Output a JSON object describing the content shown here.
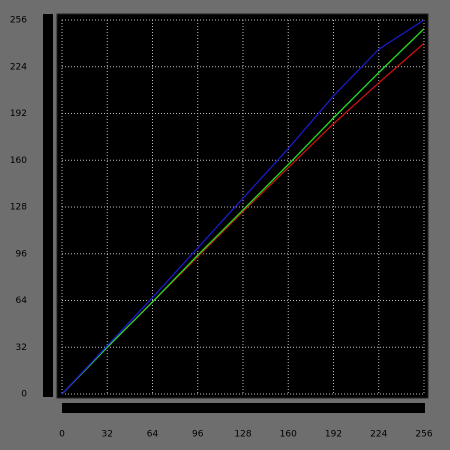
{
  "chart_data": {
    "type": "line",
    "x": [
      0,
      32,
      64,
      96,
      128,
      160,
      192,
      224,
      256
    ],
    "series": [
      {
        "color": "#cc1111",
        "values": [
          0,
          32,
          63,
          94,
          125,
          155,
          185,
          213,
          240
        ]
      },
      {
        "color": "#22dd22",
        "values": [
          0,
          32,
          63,
          95,
          126,
          157,
          189,
          220,
          250
        ]
      },
      {
        "color": "#1a1acc",
        "values": [
          0,
          33,
          66,
          100,
          134,
          168,
          204,
          236,
          256
        ]
      }
    ],
    "xlim": [
      0,
      256
    ],
    "ylim": [
      0,
      256
    ],
    "xticks": [
      0,
      32,
      64,
      96,
      128,
      160,
      192,
      224,
      256
    ],
    "yticks": [
      0,
      32,
      64,
      96,
      128,
      160,
      192,
      224,
      256
    ],
    "grid": true
  }
}
